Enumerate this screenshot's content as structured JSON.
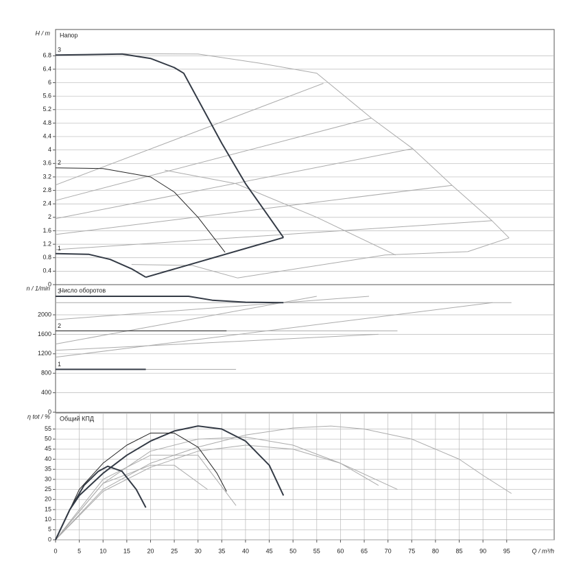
{
  "chart_data": [
    {
      "type": "line",
      "title": "Напор",
      "ylabel": "H / m",
      "xlim": [
        0,
        105
      ],
      "ylim": [
        0,
        7.58
      ],
      "yticks": [
        0,
        0.4,
        0.8,
        1.2,
        1.6,
        2,
        2.4,
        2.8,
        3.2,
        3.6,
        4,
        4.4,
        4.8,
        5.2,
        5.6,
        6,
        6.4,
        6.8
      ],
      "grid": true,
      "series": [
        {
          "color": "#aaaaaa",
          "width": 1,
          "x": [
            14,
            30,
            43,
            55,
            66.5,
            75.2,
            83.5,
            91.9,
            95.5
          ],
          "values": [
            6.86,
            6.85,
            6.58,
            6.28,
            4.95,
            4.04,
            2.95,
            1.9,
            1.39
          ]
        },
        {
          "color": "#aaaaaa",
          "width": 1,
          "x": [
            95.5,
            86.8,
            69.4,
            38.3
          ],
          "values": [
            1.39,
            0.98,
            0.88,
            0.2
          ]
        },
        {
          "color": "#aaaaaa",
          "width": 1,
          "x": [
            23,
            38,
            55,
            71.6
          ],
          "values": [
            3.4,
            3.0,
            2.0,
            0.88
          ]
        },
        {
          "color": "#aaaaaa",
          "width": 1,
          "x": [
            16,
            28.8,
            38.3
          ],
          "values": [
            0.6,
            0.57,
            0.2
          ]
        },
        {
          "color": "#aaaaaa",
          "width": 1,
          "x": [
            0,
            56.4
          ],
          "values": [
            2.96,
            5.98
          ]
        },
        {
          "color": "#aaaaaa",
          "width": 1,
          "x": [
            0,
            66.5
          ],
          "values": [
            2.5,
            4.95
          ]
        },
        {
          "color": "#aaaaaa",
          "width": 1,
          "x": [
            0,
            75.2
          ],
          "values": [
            1.96,
            4.04
          ]
        },
        {
          "color": "#aaaaaa",
          "width": 1,
          "x": [
            0,
            83.5
          ],
          "values": [
            1.49,
            2.95
          ]
        },
        {
          "color": "#aaaaaa",
          "width": 1,
          "x": [
            0,
            91.9
          ],
          "values": [
            1.04,
            1.9
          ]
        },
        {
          "name": "3",
          "color": "#333a45",
          "width": 2,
          "x": [
            0,
            14,
            20,
            25,
            27,
            35,
            40,
            45,
            48
          ],
          "values": [
            6.82,
            6.85,
            6.72,
            6.45,
            6.28,
            4.2,
            3.0,
            2.0,
            1.4
          ]
        },
        {
          "name": "2",
          "color": "#222222",
          "width": 1,
          "x": [
            0,
            10,
            20,
            25,
            30,
            35.7
          ],
          "values": [
            3.47,
            3.45,
            3.2,
            2.75,
            2.0,
            0.96
          ]
        },
        {
          "name": "1",
          "color": "#333a45",
          "width": 2,
          "x": [
            0,
            7,
            11.5,
            16,
            19
          ],
          "values": [
            0.92,
            0.9,
            0.75,
            0.47,
            0.22
          ]
        },
        {
          "color": "#333a45",
          "width": 2,
          "x": [
            19,
            48
          ],
          "values": [
            0.22,
            1.4
          ]
        }
      ]
    },
    {
      "type": "line",
      "title": "Число оборотов",
      "ylabel": "n / 1/min",
      "xlim": [
        0,
        105
      ],
      "ylim": [
        0,
        2620
      ],
      "yticks": [
        0,
        400,
        800,
        1200,
        1600,
        2000
      ],
      "grid": true,
      "series": [
        {
          "color": "#aaaaaa",
          "width": 1,
          "x": [
            0,
            38
          ],
          "values": [
            880,
            880
          ]
        },
        {
          "color": "#aaaaaa",
          "width": 1,
          "x": [
            0,
            72
          ],
          "values": [
            1670,
            1670
          ]
        },
        {
          "color": "#aaaaaa",
          "width": 1,
          "x": [
            0,
            96
          ],
          "values": [
            2250,
            2250
          ]
        },
        {
          "color": "#aaaaaa",
          "width": 1,
          "x": [
            0,
            68
          ],
          "values": [
            1270,
            1600
          ]
        },
        {
          "color": "#aaaaaa",
          "width": 1,
          "x": [
            0,
            55
          ],
          "values": [
            1400,
            2380
          ]
        },
        {
          "color": "#aaaaaa",
          "width": 1,
          "x": [
            0,
            92
          ],
          "values": [
            1130,
            2250
          ]
        },
        {
          "color": "#aaaaaa",
          "width": 1,
          "x": [
            0,
            66
          ],
          "values": [
            1900,
            2380
          ]
        },
        {
          "name": "3",
          "color": "#333a45",
          "width": 2,
          "x": [
            0,
            28,
            33,
            40,
            48
          ],
          "values": [
            2380,
            2380,
            2300,
            2260,
            2250
          ]
        },
        {
          "name": "2",
          "color": "#222222",
          "width": 1,
          "x": [
            0,
            36
          ],
          "values": [
            1670,
            1670
          ]
        },
        {
          "name": "1",
          "color": "#333a45",
          "width": 2,
          "x": [
            0,
            19
          ],
          "values": [
            880,
            880
          ]
        }
      ]
    },
    {
      "type": "line",
      "title": "Общий КПД",
      "ylabel": "η tot / %",
      "xlabel": "Q / m³/h",
      "xlim": [
        0,
        105
      ],
      "ylim": [
        0,
        63
      ],
      "yticks": [
        0,
        5,
        10,
        15,
        20,
        25,
        30,
        35,
        40,
        45,
        50,
        55
      ],
      "xticks": [
        0,
        5,
        10,
        15,
        20,
        25,
        30,
        35,
        40,
        45,
        50,
        55,
        60,
        65,
        70,
        75,
        80,
        85,
        90,
        95
      ],
      "grid": true,
      "xgrid": true,
      "series": [
        {
          "color": "#aaaaaa",
          "width": 1,
          "x": [
            0,
            10,
            20,
            30,
            40,
            50,
            58,
            65,
            75,
            85,
            90,
            96
          ],
          "values": [
            0,
            25,
            38,
            46,
            52,
            55.5,
            56.5,
            55,
            50,
            40,
            32,
            23
          ]
        },
        {
          "color": "#aaaaaa",
          "width": 1,
          "x": [
            0,
            10,
            20,
            30,
            40,
            50,
            60,
            72
          ],
          "values": [
            0,
            24,
            36,
            44,
            47,
            45,
            38,
            25
          ]
        },
        {
          "color": "#aaaaaa",
          "width": 1,
          "x": [
            0,
            10,
            20,
            30,
            38
          ],
          "values": [
            0,
            30,
            42,
            42,
            17
          ]
        },
        {
          "color": "#aaaaaa",
          "width": 1,
          "x": [
            0,
            10,
            20,
            30,
            40,
            50,
            60,
            68
          ],
          "values": [
            0,
            28,
            44,
            50,
            51,
            47,
            38,
            27
          ]
        },
        {
          "color": "#aaaaaa",
          "width": 1,
          "x": [
            0,
            10,
            20,
            25,
            32
          ],
          "values": [
            0,
            28,
            37,
            37,
            25
          ]
        },
        {
          "color": "#333a45",
          "width": 2,
          "x": [
            0,
            3,
            5,
            10,
            15,
            20,
            25,
            30,
            35,
            40,
            45,
            48
          ],
          "values": [
            0,
            15,
            22,
            33,
            42,
            49,
            54,
            56.5,
            55,
            49,
            37,
            22
          ]
        },
        {
          "color": "#222222",
          "width": 1,
          "x": [
            0,
            5,
            10,
            15,
            20,
            25,
            30,
            34,
            36
          ],
          "values": [
            0,
            25,
            38,
            47,
            53,
            53,
            46,
            33,
            24
          ]
        },
        {
          "color": "#333a45",
          "width": 2,
          "x": [
            0,
            3,
            6,
            9,
            11,
            14,
            17,
            19
          ],
          "values": [
            0,
            15,
            27,
            34,
            36.5,
            34,
            25,
            16
          ]
        }
      ]
    }
  ]
}
